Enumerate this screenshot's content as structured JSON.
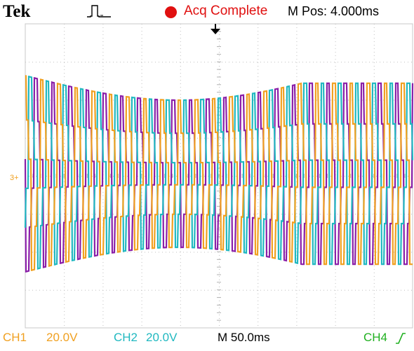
{
  "header": {
    "brand": "Tek",
    "acq_status": "Acq Complete",
    "m_pos": "M Pos: 4.000ms"
  },
  "footer": {
    "ch1_label": "CH1",
    "ch1_scale": "20.0V",
    "ch2_label": "CH2",
    "ch2_scale": "20.0V",
    "timebase": "M 50.0ms",
    "ch4_label": "CH4"
  },
  "markers": {
    "ground_marker": "3+"
  },
  "colors": {
    "ch1": "#f0a020",
    "ch2": "#20b8c0",
    "ch3": "#8a1ea8",
    "ch4": "#20b020",
    "acq": "#e01010"
  },
  "icons": {
    "trigger_status": "square-pulse-icon",
    "trigger_position": "down-arrow-icon",
    "trigger_slope": "rising-edge-icon",
    "acq_indicator": "red-dot-icon"
  }
}
